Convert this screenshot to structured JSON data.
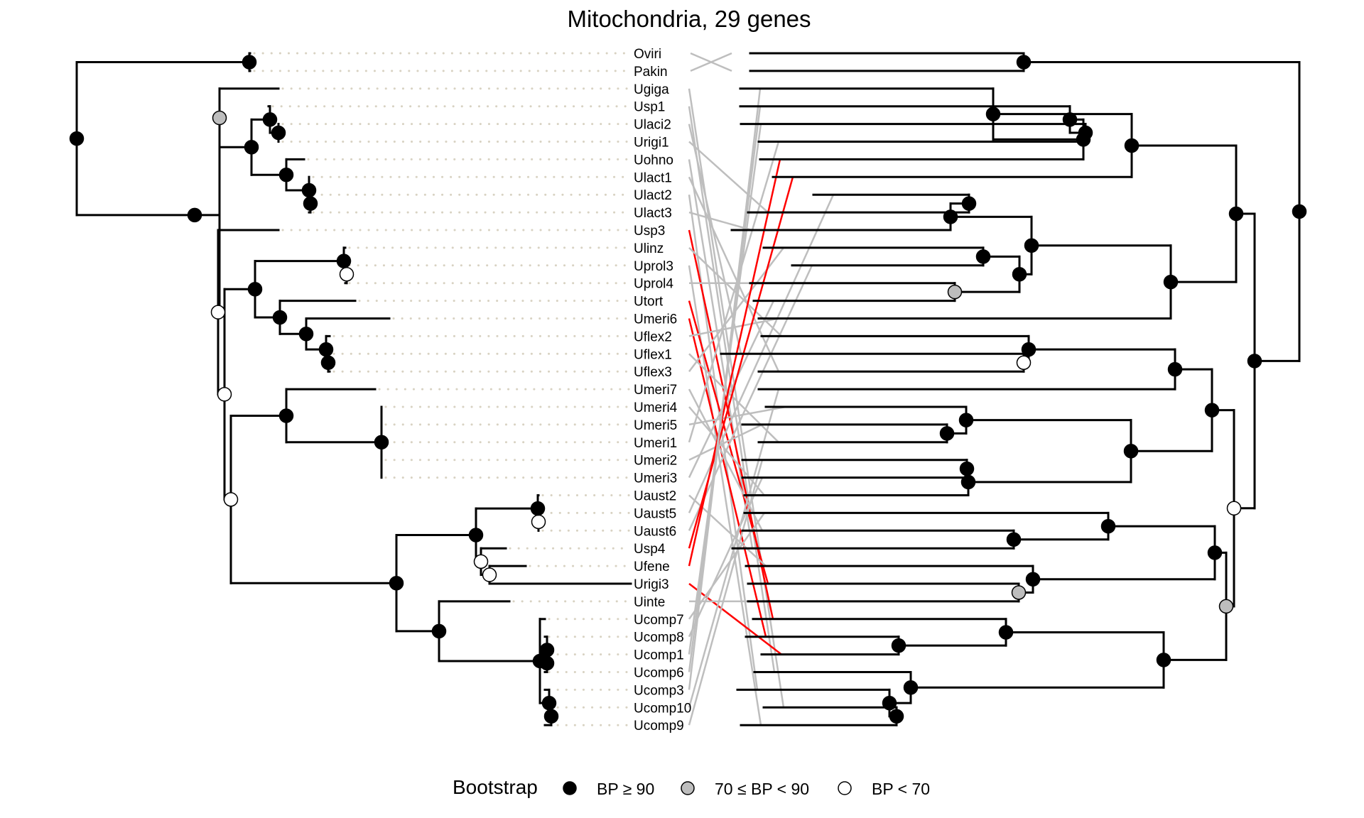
{
  "title": "Mitochondria, 29 genes",
  "taxa": [
    "Oviri",
    "Pakin",
    "Ugiga",
    "Usp1",
    "Ulaci2",
    "Urigi1",
    "Uohno",
    "Ulact1",
    "Ulact2",
    "Ulact3",
    "Usp3",
    "Ulinz",
    "Uprol3",
    "Uprol4",
    "Utort",
    "Umeri6",
    "Uflex2",
    "Uflex1",
    "Uflex3",
    "Umeri7",
    "Umeri4",
    "Umeri5",
    "Umeri1",
    "Umeri2",
    "Umeri3",
    "Uaust2",
    "Uaust5",
    "Uaust6",
    "Usp4",
    "Ufene",
    "Urigi3",
    "Uinte",
    "Ucomp7",
    "Ucomp8",
    "Ucomp1",
    "Ucomp6",
    "Ucomp3",
    "Ucomp10",
    "Ucomp9"
  ],
  "legend": {
    "title": "Bootstrap",
    "items": [
      {
        "label": "BP ≥ 90",
        "color": "#000000"
      },
      {
        "label": "70 ≤ BP < 90",
        "color": "#bdbdbd"
      },
      {
        "label": "BP < 70",
        "color": "#ffffff"
      }
    ]
  },
  "colors": {
    "tree": "#000000",
    "link": "#bebebe",
    "conflict": "#ff0000",
    "leader": "#d8d2c2"
  }
}
